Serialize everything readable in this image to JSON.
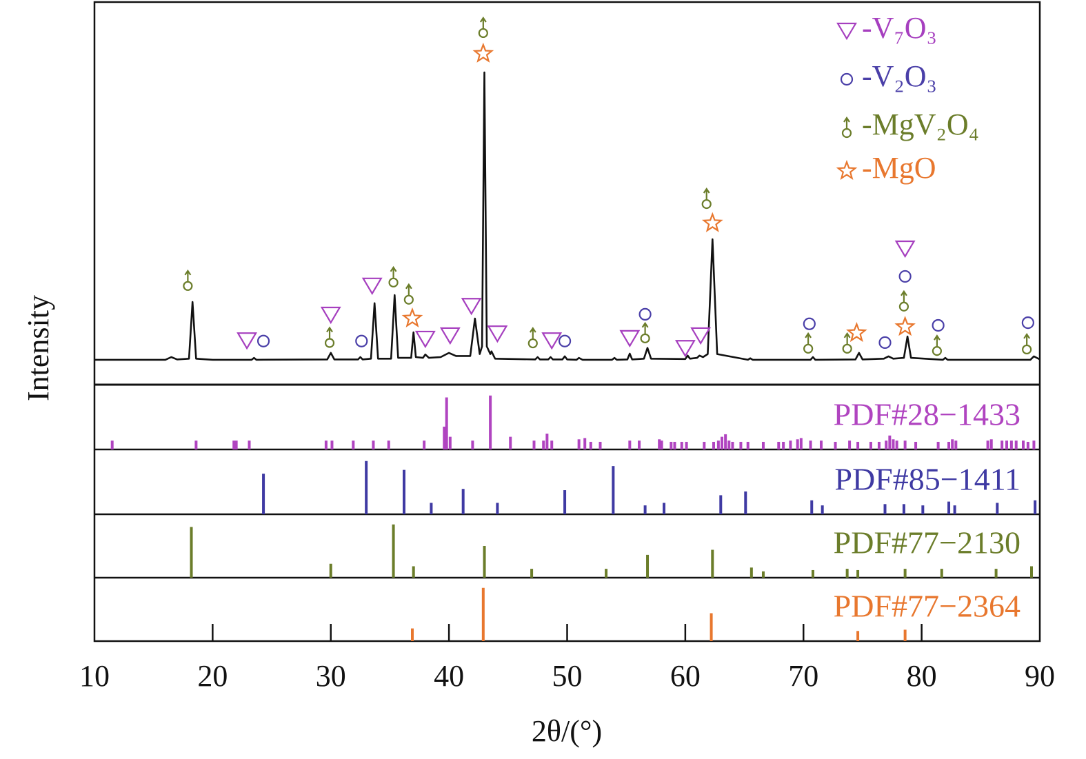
{
  "chart_data": [
    {
      "type": "line",
      "color": "#111111",
      "xlabel": "2θ/(°)",
      "ylabel": "Intensity",
      "xlim": [
        10,
        90
      ],
      "xticks": [
        10,
        20,
        30,
        40,
        50,
        60,
        70,
        80,
        90
      ],
      "ylim": [
        0,
        100
      ],
      "legend": "upper right",
      "x": [
        10,
        16,
        16.5,
        17,
        18.0,
        18.3,
        18.6,
        20,
        23.3,
        23.5,
        23.7,
        29.7,
        30.0,
        30.3,
        32.3,
        32.5,
        32.7,
        33.4,
        33.7,
        34.0,
        35.1,
        35.4,
        35.7,
        36.8,
        37.0,
        37.2,
        37.8,
        38.0,
        38.3,
        39.3,
        40.0,
        40.6,
        41.8,
        42.2,
        42.6,
        42.8,
        43.0,
        43.2,
        43.5,
        43.6,
        43.9,
        47.3,
        47.5,
        47.7,
        48.4,
        48.6,
        48.8,
        49.6,
        49.8,
        50.0,
        50.8,
        51.0,
        51.3,
        53.8,
        54.0,
        54.2,
        55.1,
        55.3,
        55.5,
        56.5,
        56.8,
        57.1,
        60.0,
        60.2,
        60.4,
        61.0,
        61.2,
        61.5,
        61.9,
        62.3,
        62.7,
        65.3,
        65.5,
        65.7,
        70.6,
        70.8,
        71.0,
        74.4,
        74.7,
        75.0,
        76.8,
        77.2,
        77.6,
        78.5,
        78.8,
        79.1,
        81.8,
        82.0,
        82.2,
        89.2,
        89.5,
        90
      ],
      "values": [
        6.5,
        6.5,
        7.2,
        6.6,
        6.8,
        21.6,
        6.8,
        6.5,
        6.5,
        7.0,
        6.5,
        6.6,
        8.3,
        6.6,
        6.6,
        7.2,
        6.6,
        6.8,
        21.3,
        6.8,
        6.8,
        23.4,
        7.0,
        7.0,
        13.7,
        7.2,
        7.0,
        7.9,
        7.0,
        7.2,
        8.3,
        7.5,
        7.5,
        17.3,
        8.0,
        10.0,
        81.6,
        10.0,
        8.0,
        8.7,
        6.8,
        6.6,
        7.2,
        6.6,
        6.6,
        7.2,
        6.6,
        6.6,
        7.4,
        6.6,
        6.5,
        7.0,
        6.5,
        6.5,
        7.0,
        6.5,
        6.6,
        8.1,
        6.6,
        6.8,
        9.6,
        6.8,
        6.7,
        7.6,
        6.8,
        7.0,
        7.6,
        7.2,
        8.0,
        38.0,
        8.0,
        6.5,
        6.9,
        6.5,
        6.5,
        7.2,
        6.5,
        6.6,
        8.3,
        6.6,
        6.8,
        7.4,
        6.8,
        7.0,
        12.6,
        7.0,
        6.5,
        7.0,
        6.5,
        6.5,
        7.4,
        6.6
      ],
      "markers": [
        {
          "name": "-V₇O₃",
          "color": "#a63fbf",
          "symbol": "triangle",
          "x": [
            22.9,
            30.0,
            33.5,
            38.0,
            40.1,
            41.9,
            44.1,
            48.7,
            55.3,
            60.0,
            61.3,
            78.6
          ],
          "values": [
            11.5,
            18.2,
            25.8,
            11.9,
            12.8,
            20.5,
            13.3,
            11.5,
            12.1,
            9.5,
            12.8,
            35.5
          ]
        },
        {
          "name": "-V₂O₃",
          "color": "#4a3fa8",
          "symbol": "circle",
          "x": [
            24.3,
            32.6,
            49.8,
            56.6,
            70.5,
            76.9,
            78.6,
            81.4,
            89.0
          ],
          "values": [
            11.4,
            11.4,
            11.4,
            18.4,
            15.9,
            11.0,
            28.3,
            15.5,
            16.2
          ]
        },
        {
          "name": "-MgV₂O₄",
          "color": "#6b7d2a",
          "symbol": "male",
          "x": [
            17.9,
            29.9,
            35.3,
            36.6,
            42.9,
            47.1,
            56.6,
            61.8,
            70.4,
            73.7,
            78.5,
            81.3,
            88.9
          ],
          "values": [
            25.8,
            10.9,
            26.7,
            22.2,
            91.9,
            10.8,
            12.1,
            47.2,
            9.4,
            9.4,
            20.4,
            8.8,
            9.2
          ]
        },
        {
          "name": "-MgO",
          "color": "#e8772e",
          "symbol": "star",
          "x": [
            36.9,
            42.9,
            62.3,
            74.5,
            78.6
          ],
          "values": [
            17.3,
            86.5,
            42.2,
            13.5,
            15.1
          ]
        }
      ]
    },
    {
      "type": "stick",
      "name": "PDF#28−1433",
      "color": "#b044c0",
      "xlim": [
        10,
        90
      ],
      "ylim": [
        0,
        100
      ],
      "x": [
        11.5,
        18.6,
        21.8,
        22.0,
        23.1,
        29.6,
        30.1,
        31.9,
        33.6,
        34.9,
        37.9,
        39.6,
        39.8,
        40.1,
        42.0,
        43.5,
        45.2,
        47.2,
        48.0,
        48.3,
        48.7,
        51.0,
        51.5,
        52.0,
        52.8,
        55.3,
        56.1,
        57.8,
        58.0,
        58.8,
        59.1,
        59.7,
        60.1,
        61.6,
        62.4,
        62.8,
        63.1,
        63.4,
        63.7,
        64.0,
        64.7,
        65.3,
        66.6,
        67.9,
        68.3,
        68.9,
        69.5,
        69.8,
        70.6,
        71.5,
        72.7,
        73.9,
        74.6,
        75.7,
        76.4,
        77.0,
        77.3,
        77.6,
        77.9,
        78.6,
        79.5,
        81.4,
        82.3,
        82.6,
        82.9,
        85.6,
        85.9,
        86.8,
        87.2,
        87.6,
        88.0,
        88.6,
        89.0,
        89.5
      ],
      "values": [
        14,
        14,
        14,
        14,
        14,
        14,
        14,
        14,
        14,
        14,
        14,
        36,
        82,
        20,
        14,
        85,
        20,
        14,
        14,
        25,
        14,
        16,
        18,
        12,
        12,
        14,
        14,
        16,
        14,
        12,
        12,
        12,
        12,
        12,
        12,
        14,
        20,
        24,
        14,
        12,
        12,
        12,
        12,
        12,
        12,
        14,
        16,
        18,
        14,
        14,
        12,
        14,
        12,
        12,
        12,
        14,
        22,
        16,
        14,
        14,
        12,
        12,
        12,
        16,
        14,
        14,
        16,
        14,
        14,
        14,
        14,
        14,
        12,
        14
      ]
    },
    {
      "type": "stick",
      "name": "PDF#85−1411",
      "color": "#3f3aa3",
      "xlim": [
        10,
        90
      ],
      "ylim": [
        0,
        100
      ],
      "x": [
        24.3,
        33.0,
        36.2,
        38.5,
        41.2,
        44.1,
        49.8,
        53.9,
        56.6,
        58.2,
        63.0,
        65.1,
        70.7,
        71.6,
        76.9,
        78.5,
        80.1,
        82.3,
        82.8,
        86.4,
        89.6
      ],
      "values": [
        64,
        84,
        70,
        18,
        40,
        18,
        38,
        76,
        14,
        18,
        30,
        36,
        22,
        14,
        16,
        16,
        14,
        20,
        14,
        18,
        22
      ]
    },
    {
      "type": "stick",
      "name": "PDF#77−2130",
      "color": "#6b7d2a",
      "xlim": [
        10,
        90
      ],
      "ylim": [
        0,
        100
      ],
      "x": [
        18.2,
        30.0,
        35.3,
        37.0,
        43.0,
        47.0,
        53.3,
        56.8,
        62.3,
        65.6,
        66.6,
        70.8,
        73.7,
        74.6,
        78.6,
        81.7,
        86.3,
        89.3
      ],
      "values": [
        80,
        22,
        84,
        18,
        50,
        14,
        14,
        36,
        44,
        16,
        10,
        12,
        14,
        12,
        14,
        14,
        14,
        18
      ]
    },
    {
      "type": "stick",
      "name": "PDF#77−2364",
      "color": "#e8772e",
      "xlim": [
        10,
        90
      ],
      "ylim": [
        0,
        100
      ],
      "x": [
        36.9,
        42.9,
        62.2,
        74.6,
        78.6
      ],
      "values": [
        20,
        84,
        44,
        16,
        18
      ]
    }
  ]
}
